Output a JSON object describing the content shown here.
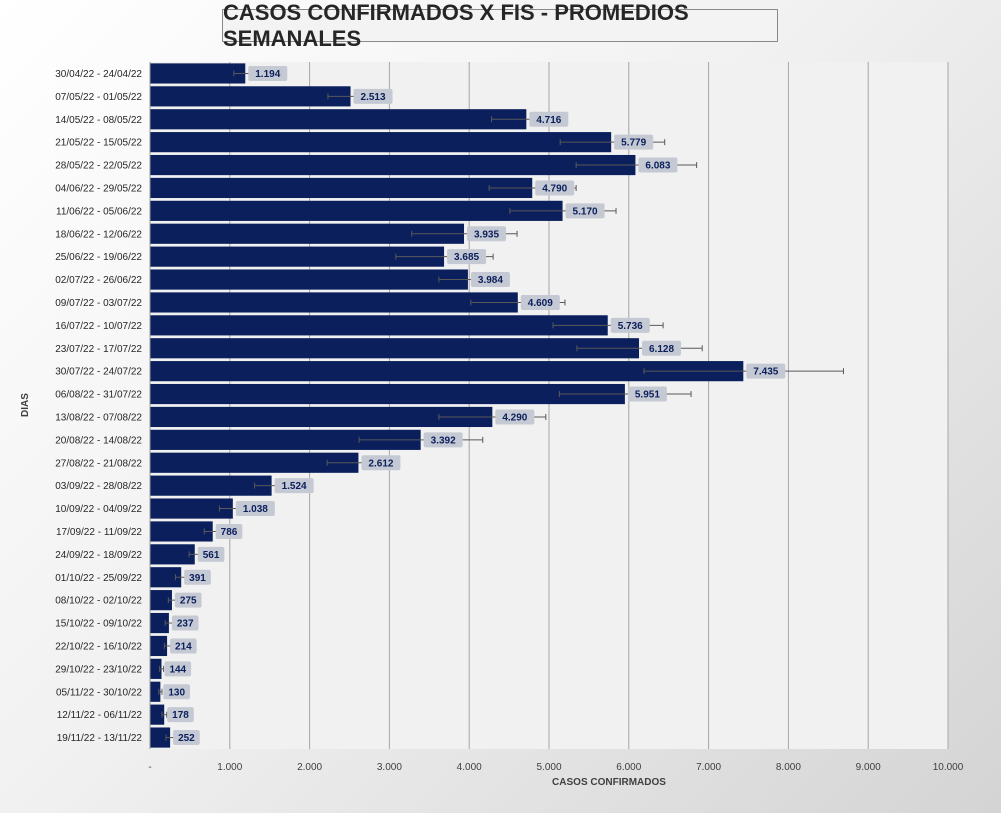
{
  "chart_data": {
    "type": "bar",
    "orientation": "horizontal",
    "title": "CASOS CONFIRMADOS X FIS - PROMEDIOS SEMANALES",
    "xlabel": "CASOS CONFIRMADOS",
    "ylabel": "DIAS",
    "xlim": [
      0,
      10000
    ],
    "x_ticks": [
      "-",
      "1.000",
      "2.000",
      "3.000",
      "4.000",
      "5.000",
      "6.000",
      "7.000",
      "8.000",
      "9.000",
      "10.000"
    ],
    "grid": "vertical",
    "legend": "none",
    "bar_color": "#0a1f5c",
    "label_bg_color": "#c5c9d3",
    "categories": [
      "30/04/22 - 24/04/22",
      "07/05/22 - 01/05/22",
      "14/05/22 - 08/05/22",
      "21/05/22 - 15/05/22",
      "28/05/22 - 22/05/22",
      "04/06/22 - 29/05/22",
      "11/06/22 - 05/06/22",
      "18/06/22 - 12/06/22",
      "25/06/22 - 19/06/22",
      "02/07/22 - 26/06/22",
      "09/07/22 - 03/07/22",
      "16/07/22 - 10/07/22",
      "23/07/22 - 17/07/22",
      "30/07/22 - 24/07/22",
      "06/08/22 - 31/07/22",
      "13/08/22 - 07/08/22",
      "20/08/22 - 14/08/22",
      "27/08/22 - 21/08/22",
      "03/09/22 - 28/08/22",
      "10/09/22 - 04/09/22",
      "17/09/22 - 11/09/22",
      "24/09/22 - 18/09/22",
      "01/10/22 - 25/09/22",
      "08/10/22 - 02/10/22",
      "15/10/22 - 09/10/22",
      "22/10/22 - 16/10/22",
      "29/10/22 - 23/10/22",
      "05/11/22 - 30/10/22",
      "12/11/22 - 06/11/22",
      "19/11/22 - 13/11/22"
    ],
    "values": [
      1194,
      2513,
      4716,
      5779,
      6083,
      4790,
      5170,
      3935,
      3685,
      3984,
      4609,
      5736,
      6128,
      7435,
      5951,
      4290,
      3392,
      2612,
      1524,
      1038,
      786,
      561,
      391,
      275,
      237,
      214,
      144,
      130,
      178,
      252
    ],
    "value_labels": [
      "1.194",
      "2.513",
      "4.716",
      "5.779",
      "6.083",
      "4.790",
      "5.170",
      "3.935",
      "3.685",
      "3.984",
      "4.609",
      "5.736",
      "6.128",
      "7.435",
      "5.951",
      "4.290",
      "3.392",
      "2.612",
      "1.524",
      "1.038",
      "786",
      "561",
      "391",
      "275",
      "237",
      "214",
      "144",
      "130",
      "178",
      "252"
    ],
    "error_low": [
      1050,
      2230,
      4280,
      5140,
      5340,
      4250,
      4510,
      3280,
      3080,
      3620,
      4020,
      5050,
      5350,
      6190,
      5130,
      3620,
      2620,
      2220,
      1310,
      870,
      680,
      490,
      320,
      230,
      190,
      180,
      120,
      110,
      150,
      200
    ],
    "error_high": [
      1340,
      2790,
      5150,
      6450,
      6850,
      5340,
      5840,
      4600,
      4300,
      4350,
      5200,
      6430,
      6920,
      8690,
      6780,
      4960,
      4170,
      3010,
      1750,
      1210,
      900,
      640,
      460,
      320,
      290,
      260,
      170,
      150,
      210,
      300
    ]
  }
}
